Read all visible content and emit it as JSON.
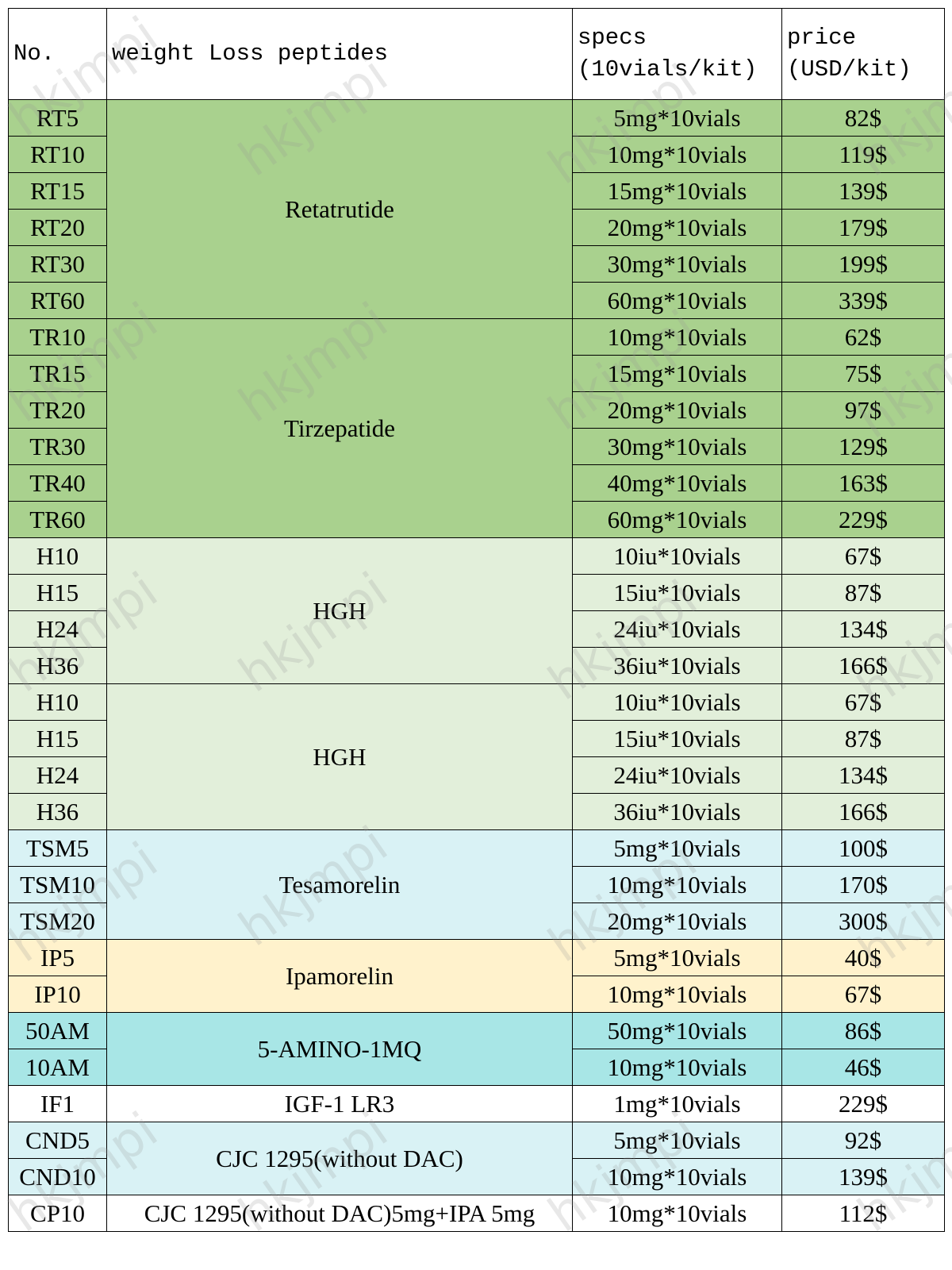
{
  "watermark": "hkjmpi",
  "table": {
    "header": [
      "No.",
      "weight Loss peptides",
      "specs\n(10vials/kit)",
      "price\n(USD/kit)"
    ],
    "groups": [
      {
        "name": "Retatrutide",
        "color": "#a9d18e",
        "rows": [
          [
            "RT5",
            "5mg*10vials",
            "82$"
          ],
          [
            "RT10",
            "10mg*10vials",
            "119$"
          ],
          [
            "RT15",
            "15mg*10vials",
            "139$"
          ],
          [
            "RT20",
            "20mg*10vials",
            "179$"
          ],
          [
            "RT30",
            "30mg*10vials",
            "199$"
          ],
          [
            "RT60",
            "60mg*10vials",
            "339$"
          ]
        ]
      },
      {
        "name": "Tirzepatide",
        "color": "#a9d18e",
        "rows": [
          [
            "TR10",
            "10mg*10vials",
            "62$"
          ],
          [
            "TR15",
            "15mg*10vials",
            "75$"
          ],
          [
            "TR20",
            "20mg*10vials",
            "97$"
          ],
          [
            "TR30",
            "30mg*10vials",
            "129$"
          ],
          [
            "TR40",
            "40mg*10vials",
            "163$"
          ],
          [
            "TR60",
            "60mg*10vials",
            "229$"
          ]
        ]
      },
      {
        "name": "HGH",
        "color": "#e2efda",
        "rows": [
          [
            "H10",
            "10iu*10vials",
            "67$"
          ],
          [
            "H15",
            "15iu*10vials",
            "87$"
          ],
          [
            "H24",
            "24iu*10vials",
            "134$"
          ],
          [
            "H36",
            "36iu*10vials",
            "166$"
          ]
        ]
      },
      {
        "name": "HGH",
        "color": "#e2efda",
        "rows": [
          [
            "H10",
            "10iu*10vials",
            "67$"
          ],
          [
            "H15",
            "15iu*10vials",
            "87$"
          ],
          [
            "H24",
            "24iu*10vials",
            "134$"
          ],
          [
            "H36",
            "36iu*10vials",
            "166$"
          ]
        ]
      },
      {
        "name": "Tesamorelin",
        "color": "#d9f2f5",
        "rows": [
          [
            "TSM5",
            "5mg*10vials",
            "100$"
          ],
          [
            "TSM10",
            "10mg*10vials",
            "170$"
          ],
          [
            "TSM20",
            "20mg*10vials",
            "300$"
          ]
        ]
      },
      {
        "name": "Ipamorelin",
        "color": "#fff2cc",
        "rows": [
          [
            "IP5",
            "5mg*10vials",
            "40$"
          ],
          [
            "IP10",
            "10mg*10vials",
            "67$"
          ]
        ]
      },
      {
        "name": "5-AMINO-1MQ",
        "color": "#a8e6e6",
        "rows": [
          [
            "50AM",
            "50mg*10vials",
            "86$"
          ],
          [
            "10AM",
            "10mg*10vials",
            "46$"
          ]
        ]
      },
      {
        "name": "IGF-1 LR3",
        "color": "#ffffff",
        "rows": [
          [
            "IF1",
            "1mg*10vials",
            "229$"
          ]
        ]
      },
      {
        "name": "CJC 1295(without DAC)",
        "color": "#d9f2f5",
        "rows": [
          [
            "CND5",
            "5mg*10vials",
            "92$"
          ],
          [
            "CND10",
            "10mg*10vials",
            "139$"
          ]
        ]
      },
      {
        "name": "CJC 1295(without DAC)5mg+IPA 5mg",
        "color": "#ffffff",
        "rows": [
          [
            "CP10",
            "10mg*10vials",
            "112$"
          ]
        ]
      }
    ]
  }
}
